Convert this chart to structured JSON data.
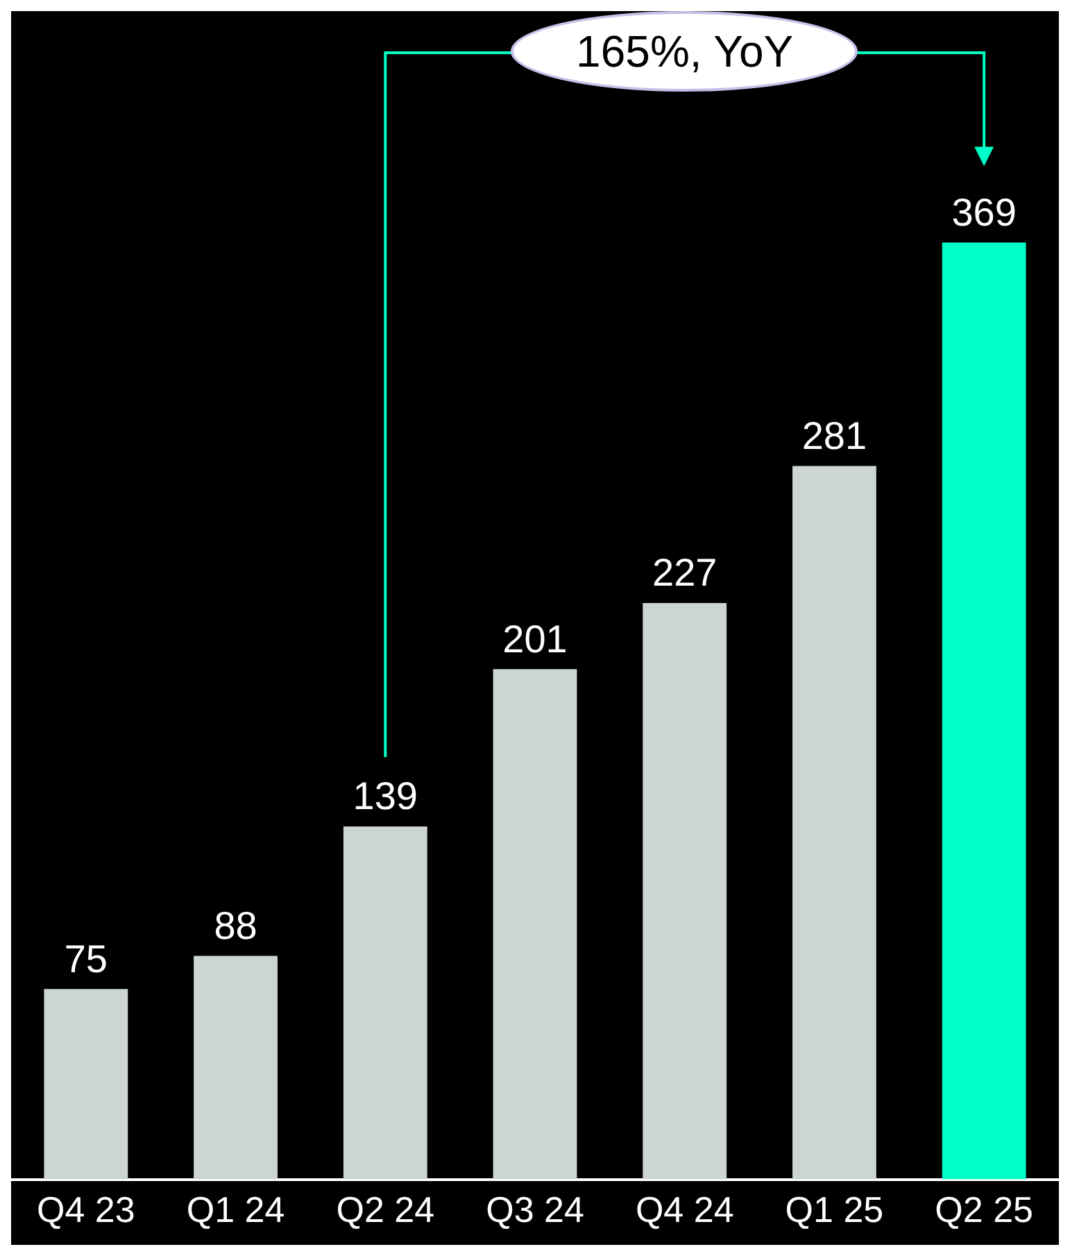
{
  "chart_data": {
    "type": "bar",
    "categories": [
      "Q4 23",
      "Q1 24",
      "Q2 24",
      "Q3 24",
      "Q4 24",
      "Q1 25",
      "Q2 25"
    ],
    "values": [
      75,
      88,
      139,
      201,
      227,
      281,
      369
    ],
    "colors": [
      "#ccd5d3",
      "#ccd5d3",
      "#ccd5d3",
      "#ccd5d3",
      "#ccd5d3",
      "#ccd5d3",
      "#00ffc6"
    ],
    "data_labels": true,
    "legend": false,
    "tick_labels": "x",
    "annotations": [
      "165%, YoY"
    ]
  }
}
